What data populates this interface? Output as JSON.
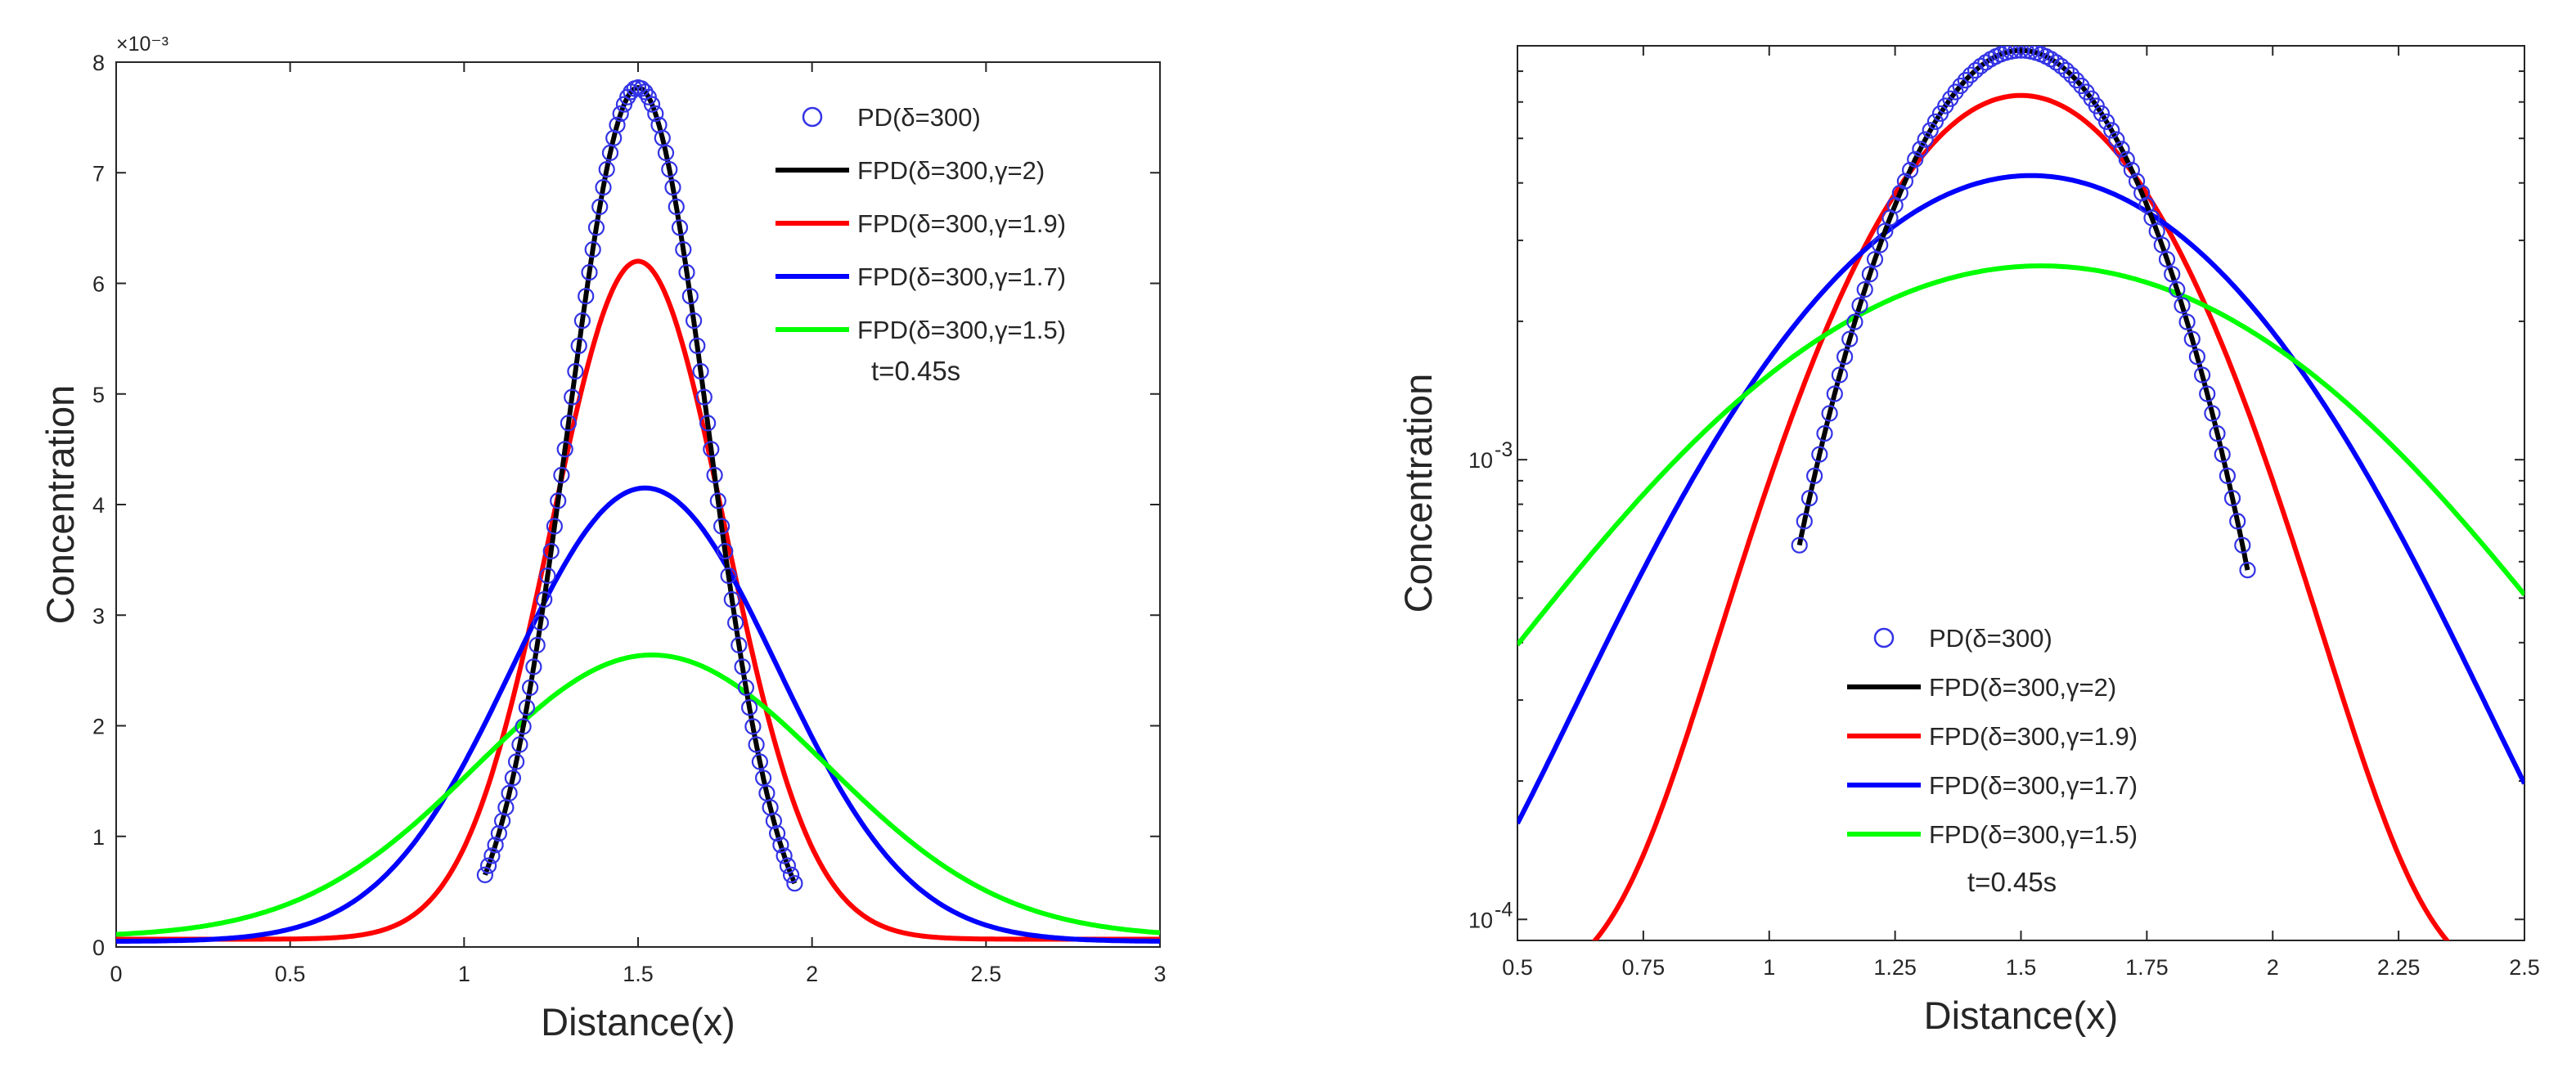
{
  "chart_data": [
    {
      "type": "line",
      "title": "",
      "xlabel": "Distance(x)",
      "ylabel": "Concentration",
      "y_multiplier_label": "×10⁻³",
      "y_scale": "linear",
      "xlim": [
        0,
        3
      ],
      "ylim": [
        0,
        8
      ],
      "xticks": [
        0,
        0.5,
        1,
        1.5,
        2,
        2.5,
        3
      ],
      "xtick_labels": [
        "0",
        "0.5",
        "1",
        "1.5",
        "2",
        "2.5",
        "3"
      ],
      "yticks": [
        0,
        1,
        2,
        3,
        4,
        5,
        6,
        7,
        8
      ],
      "ytick_labels": [
        "0",
        "1",
        "2",
        "3",
        "4",
        "5",
        "6",
        "7",
        "8"
      ],
      "grid": false,
      "legend_position": "top-right",
      "annotation": "t=0.45s",
      "series": [
        {
          "name": "PD(δ=300)",
          "style": "circle-markers",
          "color": "#3333e6",
          "model": {
            "kind": "gauss",
            "amp": 0.00786,
            "mu": 1.5,
            "sigma": 0.2025,
            "base": -9e-05
          },
          "x_range": [
            1.06,
            1.95
          ]
        },
        {
          "name": "FPD(δ=300,γ=2)",
          "style": "line",
          "color": "#000000",
          "model": {
            "kind": "gauss",
            "amp": 0.00786,
            "mu": 1.5,
            "sigma": 0.2025,
            "base": -9e-05
          },
          "x_range": [
            1.06,
            1.95
          ]
        },
        {
          "name": "FPD(δ=300,γ=1.9)",
          "style": "line",
          "color": "#ff0000",
          "model": {
            "kind": "gauss",
            "amp": 0.00613,
            "mu": 1.5,
            "sigma": 0.25,
            "base": 7e-05
          },
          "x_range": [
            0,
            3
          ]
        },
        {
          "name": "FPD(δ=300,γ=1.7)",
          "style": "line",
          "color": "#0000ff",
          "model": {
            "kind": "gauss",
            "amp": 0.0041,
            "mu": 1.52,
            "sigma": 0.38,
            "base": 5e-05
          },
          "x_range": [
            0,
            3
          ]
        },
        {
          "name": "FPD(δ=300,γ=1.5)",
          "style": "line",
          "color": "#00ff00",
          "model": {
            "kind": "gauss",
            "amp": 0.00255,
            "mu": 1.54,
            "sigma": 0.505,
            "base": 9e-05
          },
          "x_range": [
            0,
            3
          ]
        }
      ]
    },
    {
      "type": "line",
      "title": "",
      "xlabel": "Distance(x)",
      "ylabel": "Concentration",
      "y_scale": "log",
      "xlim": [
        0.5,
        2.5
      ],
      "ylim": [
        9e-05,
        0.00795
      ],
      "xticks": [
        0.5,
        0.75,
        1,
        1.25,
        1.5,
        1.75,
        2,
        2.25,
        2.5
      ],
      "xtick_labels": [
        "0.5",
        "0.75",
        "1",
        "1.25",
        "1.5",
        "1.75",
        "2",
        "2.25",
        "2.5"
      ],
      "yticks_major": [
        0.0001,
        0.001
      ],
      "ytick_labels": [
        "10",
        "10"
      ],
      "ytick_exponents": [
        "-4",
        "-3"
      ],
      "grid": false,
      "legend_position": "bottom-center",
      "annotation": "t=0.45s",
      "series": [
        {
          "name": "PD(δ=300)",
          "style": "circle-markers",
          "color": "#3333e6",
          "model": {
            "kind": "gauss",
            "amp": 0.00786,
            "mu": 1.5,
            "sigma": 0.2025,
            "base": -9e-05
          },
          "x_range": [
            1.06,
            1.95
          ]
        },
        {
          "name": "FPD(δ=300,γ=2)",
          "style": "line",
          "color": "#000000",
          "model": {
            "kind": "gauss",
            "amp": 0.00786,
            "mu": 1.5,
            "sigma": 0.2025,
            "base": -9e-05
          },
          "x_range": [
            1.06,
            1.95
          ]
        },
        {
          "name": "FPD(δ=300,γ=1.9)",
          "style": "line",
          "color": "#ff0000",
          "model": {
            "kind": "gauss",
            "amp": 0.00613,
            "mu": 1.5,
            "sigma": 0.25,
            "base": 7e-05
          },
          "x_range": [
            0.5,
            2.5
          ]
        },
        {
          "name": "FPD(δ=300,γ=1.7)",
          "style": "line",
          "color": "#0000ff",
          "model": {
            "kind": "gauss",
            "amp": 0.0041,
            "mu": 1.52,
            "sigma": 0.38,
            "base": 5e-05
          },
          "x_range": [
            0.5,
            2.5
          ]
        },
        {
          "name": "FPD(δ=300,γ=1.5)",
          "style": "line",
          "color": "#00ff00",
          "model": {
            "kind": "gauss",
            "amp": 0.00255,
            "mu": 1.54,
            "sigma": 0.505,
            "base": 9e-05
          },
          "x_range": [
            0.5,
            2.5
          ]
        }
      ]
    }
  ]
}
